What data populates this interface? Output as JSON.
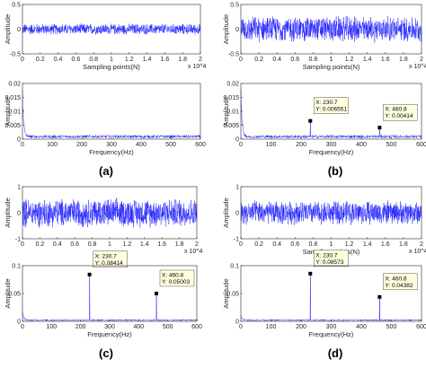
{
  "figure": {
    "colors": {
      "signal": "#0000ff",
      "axis": "#262626",
      "tip_bg": "#ffffe1",
      "marker": "#000000"
    },
    "panels": [
      {
        "label": "(a)",
        "time": {
          "ylabel": "Amplitude",
          "xlabel": "Sampling points(N)",
          "exponent": "x 10^4",
          "xlim": [
            0,
            2
          ],
          "ylim": [
            -0.5,
            0.5
          ],
          "xticks": [
            "0",
            "0.2",
            "0.4",
            "0.6",
            "0.8",
            "1",
            "1.2",
            "1.4",
            "1.6",
            "1.8",
            "2"
          ],
          "yticks": [
            "-0.5",
            "0",
            "0.5"
          ],
          "signal_amplitude": 0.12
        },
        "spectrum": {
          "ylabel": "Amplitude",
          "xlabel": "Frequency(Hz)",
          "xlim": [
            0,
            600
          ],
          "ylim": [
            0,
            0.02
          ],
          "xticks": [
            "0",
            "100",
            "200",
            "300",
            "400",
            "500",
            "600"
          ],
          "yticks": [
            "0",
            "0.005",
            "0.01",
            "0.015",
            "0.02"
          ],
          "low_freq_peak": 0.017,
          "noise_floor": 0.0012,
          "peaks": []
        }
      },
      {
        "label": "(b)",
        "time": {
          "ylabel": "Amplitude",
          "xlabel": "Sampling points(N)",
          "exponent": "x 10^4",
          "xlim": [
            0,
            2
          ],
          "ylim": [
            -0.5,
            0.5
          ],
          "xticks": [
            "0",
            "0.2",
            "0.4",
            "0.6",
            "0.8",
            "1",
            "1.2",
            "1.4",
            "1.6",
            "1.8",
            "2"
          ],
          "yticks": [
            "-0.5",
            "0",
            "0.5"
          ],
          "signal_amplitude": 0.28
        },
        "spectrum": {
          "ylabel": "Amplitude",
          "xlabel": "Frequency(Hz)",
          "xlim": [
            0,
            600
          ],
          "ylim": [
            0,
            0.02
          ],
          "xticks": [
            "0",
            "100",
            "200",
            "300",
            "400",
            "500",
            "600"
          ],
          "yticks": [
            "0",
            "0.005",
            "0.01",
            "0.015",
            "0.02"
          ],
          "low_freq_peak": 0.019,
          "noise_floor": 0.0012,
          "peaks": [
            {
              "x": 230.7,
              "y": 0.006551,
              "xlabel": "X: 230.7",
              "ylabel": "Y: 0.006551"
            },
            {
              "x": 460.8,
              "y": 0.00414,
              "xlabel": "X: 460.8",
              "ylabel": "Y: 0.00414"
            }
          ]
        }
      },
      {
        "label": "(c)",
        "time": {
          "ylabel": "Amplitude",
          "xlabel": "",
          "exponent": "x 10^4",
          "xlim": [
            0,
            2
          ],
          "ylim": [
            -1,
            1
          ],
          "xticks": [
            "0",
            "0.2",
            "0.4",
            "0.6",
            "0.8",
            "1",
            "1.2",
            "1.4",
            "1.6",
            "1.8",
            "2"
          ],
          "yticks": [
            "-1",
            "0",
            "1"
          ],
          "signal_amplitude": 0.6
        },
        "spectrum": {
          "ylabel": "Amplitude",
          "xlabel": "Frequency(Hz)",
          "xlim": [
            0,
            600
          ],
          "ylim": [
            0,
            0.1
          ],
          "xticks": [
            "0",
            "100",
            "200",
            "300",
            "400",
            "500",
            "600"
          ],
          "yticks": [
            "0",
            "0.05",
            "0.1"
          ],
          "low_freq_peak": 0.018,
          "noise_floor": 0.003,
          "peaks": [
            {
              "x": 230.7,
              "y": 0.08414,
              "xlabel": "X: 230.7",
              "ylabel": "Y: 0.08414"
            },
            {
              "x": 460.8,
              "y": 0.05003,
              "xlabel": "X: 460.8",
              "ylabel": "Y: 0.05003"
            }
          ]
        }
      },
      {
        "label": "(d)",
        "time": {
          "ylabel": "Amplitude",
          "xlabel": "Sampling points(N)",
          "exponent": "x 10^4",
          "xlim": [
            0,
            2
          ],
          "ylim": [
            -1,
            1
          ],
          "xticks": [
            "0",
            "0.2",
            "0.4",
            "0.6",
            "0.8",
            "1",
            "1.2",
            "1.4",
            "1.6",
            "1.8",
            "2"
          ],
          "yticks": [
            "-1",
            "0",
            "1"
          ],
          "signal_amplitude": 0.5
        },
        "spectrum": {
          "ylabel": "Amplitude",
          "xlabel": "Frequency(Hz)",
          "xlim": [
            0,
            600
          ],
          "ylim": [
            0,
            0.1
          ],
          "xticks": [
            "0",
            "100",
            "200",
            "300",
            "400",
            "500",
            "600"
          ],
          "yticks": [
            "0",
            "0.05",
            "0.1"
          ],
          "low_freq_peak": 0.012,
          "noise_floor": 0.003,
          "peaks": [
            {
              "x": 230.7,
              "y": 0.08573,
              "xlabel": "X: 230.7",
              "ylabel": "Y: 0.08573"
            },
            {
              "x": 460.8,
              "y": 0.04382,
              "xlabel": "X: 460.8",
              "ylabel": "Y: 0.04382"
            }
          ]
        }
      }
    ]
  },
  "chart_data": [
    {
      "type": "line",
      "panel": "(a)",
      "title": "",
      "xlabel": "Sampling points(N)",
      "ylabel": "Amplitude",
      "xlim": [
        0,
        20000
      ],
      "ylim": [
        -0.5,
        0.5
      ],
      "series": [
        {
          "values": "dense noise signal, amplitude about ±0.12"
        }
      ]
    },
    {
      "type": "line",
      "panel": "(a)",
      "title": "",
      "xlabel": "Frequency(Hz)",
      "ylabel": "Amplitude",
      "xlim": [
        0,
        600
      ],
      "ylim": [
        0,
        0.02
      ],
      "series": [
        {
          "x": [
            0,
            5,
            15,
            30,
            100,
            300,
            600
          ],
          "values": [
            0.017,
            0.008,
            0.004,
            0.002,
            0.0012,
            0.0012,
            0.0012
          ]
        }
      ]
    },
    {
      "type": "line",
      "panel": "(b)",
      "title": "",
      "xlabel": "Sampling points(N)",
      "ylabel": "Amplitude",
      "xlim": [
        0,
        20000
      ],
      "ylim": [
        -0.5,
        0.5
      ],
      "series": [
        {
          "values": "dense noise signal, amplitude about ±0.28"
        }
      ]
    },
    {
      "type": "line",
      "panel": "(b)",
      "title": "",
      "xlabel": "Frequency(Hz)",
      "ylabel": "Amplitude",
      "xlim": [
        0,
        600
      ],
      "ylim": [
        0,
        0.02
      ],
      "series": [
        {
          "x": [
            230.7,
            460.8
          ],
          "values": [
            0.006551,
            0.00414
          ]
        }
      ],
      "annotations": [
        "X: 230.7",
        "Y: 0.006551",
        "X: 460.8",
        "Y: 0.00414"
      ]
    },
    {
      "type": "line",
      "panel": "(c)",
      "title": "",
      "xlabel": "",
      "ylabel": "Amplitude",
      "xlim": [
        0,
        20000
      ],
      "ylim": [
        -1,
        1
      ],
      "series": [
        {
          "values": "dense noise signal, amplitude about ±0.6"
        }
      ]
    },
    {
      "type": "line",
      "panel": "(c)",
      "title": "",
      "xlabel": "Frequency(Hz)",
      "ylabel": "Amplitude",
      "xlim": [
        0,
        600
      ],
      "ylim": [
        0,
        0.1
      ],
      "series": [
        {
          "x": [
            230.7,
            460.8
          ],
          "values": [
            0.08414,
            0.05003
          ]
        }
      ],
      "annotations": [
        "X: 230.7",
        "Y: 0.08414",
        "X: 460.8",
        "Y: 0.05003"
      ]
    },
    {
      "type": "line",
      "panel": "(d)",
      "title": "",
      "xlabel": "Sampling points(N)",
      "ylabel": "Amplitude",
      "xlim": [
        0,
        20000
      ],
      "ylim": [
        -1,
        1
      ],
      "series": [
        {
          "values": "dense noise signal, amplitude about ±0.5"
        }
      ]
    },
    {
      "type": "line",
      "panel": "(d)",
      "title": "",
      "xlabel": "Frequency(Hz)",
      "ylabel": "Amplitude",
      "xlim": [
        0,
        600
      ],
      "ylim": [
        0,
        0.1
      ],
      "series": [
        {
          "x": [
            230.7,
            460.8
          ],
          "values": [
            0.08573,
            0.04382
          ]
        }
      ],
      "annotations": [
        "X: 230.7",
        "Y: 0.08573",
        "X: 460.8",
        "Y: 0.04382"
      ]
    }
  ]
}
